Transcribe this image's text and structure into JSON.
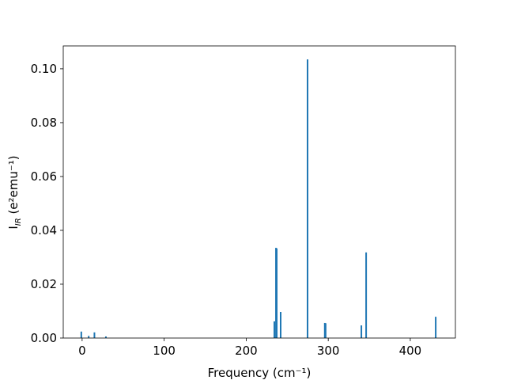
{
  "chart_data": {
    "type": "bar",
    "xlabel": "Frequency (cm⁻¹)",
    "ylabel": [
      "I",
      "IR",
      " (e²emu⁻¹)"
    ],
    "x": [
      -1,
      8,
      15,
      29,
      234.3,
      236.3,
      237.2,
      242,
      274.8,
      295.8,
      296.8,
      340.4,
      346.2,
      431
    ],
    "values": [
      0.0024,
      0.0008,
      0.0021,
      0.0006,
      0.0062,
      0.0335,
      0.0333,
      0.0097,
      0.1035,
      0.0056,
      0.0055,
      0.0047,
      0.0318,
      0.0079
    ],
    "color": "#1f77b4",
    "xlim": [
      -23,
      455
    ],
    "ylim": [
      0,
      0.1085
    ],
    "xticks": [
      0,
      100,
      200,
      300,
      400
    ],
    "yticks": [
      {
        "value": 0,
        "label": "0.00"
      },
      {
        "value": 0.02,
        "label": "0.02"
      },
      {
        "value": 0.04,
        "label": "0.04"
      },
      {
        "value": 0.06,
        "label": "0.06"
      },
      {
        "value": 0.08,
        "label": "0.08"
      },
      {
        "value": 0.1,
        "label": "0.10"
      }
    ]
  }
}
